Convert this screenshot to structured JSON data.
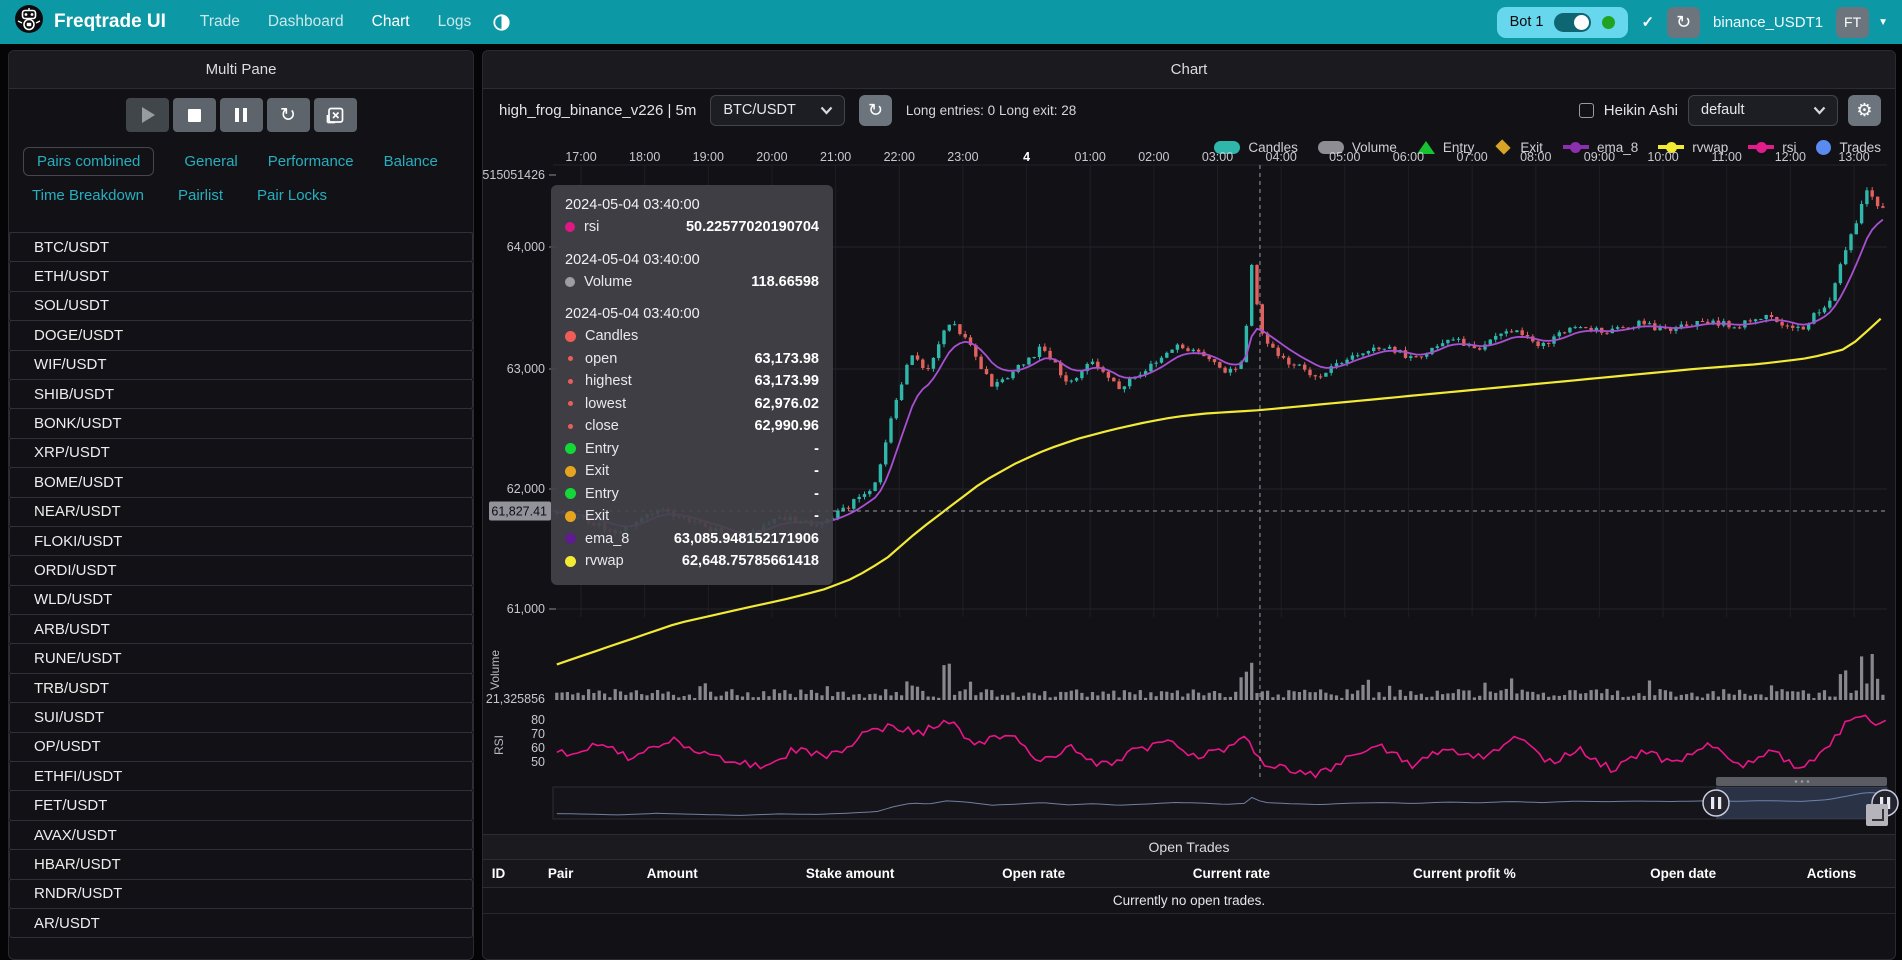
{
  "navbar": {
    "brand": "Freqtrade UI",
    "links": [
      {
        "label": "Trade",
        "active": false
      },
      {
        "label": "Dashboard",
        "active": false
      },
      {
        "label": "Chart",
        "active": true
      },
      {
        "label": "Logs",
        "active": false
      }
    ],
    "bot_name": "Bot 1",
    "bot_online": true,
    "check": "✓",
    "account": "binance_USDT1",
    "avatar": "FT"
  },
  "left_panel": {
    "title": "Multi Pane",
    "controls": [
      "play",
      "stop",
      "pause",
      "refresh",
      "clear-log"
    ],
    "tabs_row1": [
      "Pairs combined",
      "General",
      "Performance",
      "Balance"
    ],
    "tabs_row2": [
      "Time Breakdown",
      "Pairlist",
      "Pair Locks"
    ],
    "active_tab": "Pairs combined",
    "pairs": [
      "BTC/USDT",
      "ETH/USDT",
      "SOL/USDT",
      "DOGE/USDT",
      "WIF/USDT",
      "SHIB/USDT",
      "BONK/USDT",
      "XRP/USDT",
      "BOME/USDT",
      "NEAR/USDT",
      "FLOKI/USDT",
      "ORDI/USDT",
      "WLD/USDT",
      "ARB/USDT",
      "RUNE/USDT",
      "TRB/USDT",
      "SUI/USDT",
      "OP/USDT",
      "ETHFI/USDT",
      "FET/USDT",
      "AVAX/USDT",
      "HBAR/USDT",
      "RNDR/USDT",
      "AR/USDT"
    ]
  },
  "chart_panel": {
    "title": "Chart",
    "strategy": "high_frog_binance_v226 | 5m",
    "pair": "BTC/USDT",
    "stats": "Long entries: 0  Long exit: 28",
    "heikin_ashi": "Heikin Ashi",
    "plot_config": "default",
    "legend": [
      {
        "label": "Candles",
        "shape": "pill",
        "color": "#2fb7ab"
      },
      {
        "label": "Volume",
        "shape": "pill",
        "color": "#8d8d93"
      },
      {
        "label": "Entry",
        "shape": "triangle",
        "color": "#17c331"
      },
      {
        "label": "Exit",
        "shape": "diamond",
        "color": "#d9a425"
      },
      {
        "label": "ema_8",
        "shape": "linedot",
        "color": "#8b2fae"
      },
      {
        "label": "rvwap",
        "shape": "linedot",
        "color": "#f2e933"
      },
      {
        "label": "rsi",
        "shape": "linedot",
        "color": "#e31c8c"
      },
      {
        "label": "Trades",
        "shape": "circle",
        "color": "#5a8bf0"
      }
    ]
  },
  "tooltip": {
    "sections": [
      {
        "date": "2024-05-04 03:40:00",
        "rows": [
          {
            "dot": "#e01884",
            "size": "md",
            "label": "rsi",
            "value": "50.22577020190704"
          }
        ]
      },
      {
        "date": "2024-05-04 03:40:00",
        "rows": [
          {
            "dot": "#9e9ea2",
            "size": "md",
            "label": "Volume",
            "value": "118.66598"
          }
        ]
      },
      {
        "date": "2024-05-04 03:40:00",
        "rows": [
          {
            "dot": "#ee5d57",
            "size": "lg",
            "label": "Candles",
            "value": ""
          },
          {
            "dot": "#ee5d57",
            "size": "sm",
            "label": "open",
            "value": "63,173.98"
          },
          {
            "dot": "#ee5d57",
            "size": "sm",
            "label": "highest",
            "value": "63,173.99"
          },
          {
            "dot": "#ee5d57",
            "size": "sm",
            "label": "lowest",
            "value": "62,976.02"
          },
          {
            "dot": "#ee5d57",
            "size": "sm",
            "label": "close",
            "value": "62,990.96"
          },
          {
            "dot": "#13d838",
            "size": "lg",
            "label": "Entry",
            "value": "-"
          },
          {
            "dot": "#e7a51f",
            "size": "lg",
            "label": "Exit",
            "value": "-"
          },
          {
            "dot": "#13d838",
            "size": "lg",
            "label": "Entry",
            "value": "-"
          },
          {
            "dot": "#e7a51f",
            "size": "lg",
            "label": "Exit",
            "value": "-"
          },
          {
            "dot": "#5e1c8e",
            "size": "lg",
            "label": "ema_8",
            "value": "63,085.948152171906"
          },
          {
            "dot": "#f3ea33",
            "size": "lg",
            "label": "rvwap",
            "value": "62,648.75785661418"
          }
        ]
      }
    ]
  },
  "chart_data": {
    "type": "candlestick",
    "timeframe": "5m",
    "x_labels": [
      "17:00",
      "18:00",
      "19:00",
      "20:00",
      "21:00",
      "22:00",
      "23:00",
      "4",
      "01:00",
      "02:00",
      "03:00",
      "04:00",
      "05:00",
      "06:00",
      "07:00",
      "08:00",
      "09:00",
      "10:00",
      "11:00",
      "12:00",
      "13:00"
    ],
    "day_label": "4",
    "y_ticks": [
      {
        "label": "515051426",
        "y": 28
      },
      {
        "label": "64,000",
        "y": 100
      },
      {
        "label": "63,000",
        "y": 222
      },
      {
        "label": "62,000",
        "y": 342
      },
      {
        "label": "61,000",
        "y": 462
      }
    ],
    "crosshair_price_label": "61,827.41",
    "crosshair_time_u": 10.667,
    "volume_tick": "21,325856",
    "volume_axis_title": "Volume",
    "rsi_axis_title": "RSI",
    "rsi_ticks": [
      "80",
      "70",
      "60",
      "50"
    ],
    "seed": 11,
    "colors": {
      "up": "#2fb7ab",
      "down": "#e0615e",
      "ema": "#a94fd2",
      "rvwap": "#f3ea35",
      "rsi": "#ec1489",
      "volume": "#87878d"
    },
    "price_anchors": [
      [
        -0.5,
        61820
      ],
      [
        0,
        61750
      ],
      [
        0.6,
        61640
      ],
      [
        1.2,
        61840
      ],
      [
        1.9,
        61690
      ],
      [
        2.5,
        61580
      ],
      [
        3.1,
        61760
      ],
      [
        3.7,
        61700
      ],
      [
        4.2,
        61850
      ],
      [
        4.65,
        62050
      ],
      [
        4.95,
        62750
      ],
      [
        5.2,
        63120
      ],
      [
        5.45,
        62980
      ],
      [
        5.75,
        63400
      ],
      [
        6.05,
        63250
      ],
      [
        6.45,
        62850
      ],
      [
        6.85,
        62990
      ],
      [
        7.25,
        63170
      ],
      [
        7.65,
        62880
      ],
      [
        8.05,
        63050
      ],
      [
        8.45,
        62840
      ],
      [
        8.95,
        63020
      ],
      [
        9.35,
        63190
      ],
      [
        9.75,
        63110
      ],
      [
        10.15,
        62950
      ],
      [
        10.42,
        63080
      ],
      [
        10.52,
        63880
      ],
      [
        10.72,
        63200
      ],
      [
        11.1,
        63050
      ],
      [
        11.6,
        62930
      ],
      [
        12.1,
        63110
      ],
      [
        12.6,
        63180
      ],
      [
        13.1,
        63070
      ],
      [
        13.6,
        63250
      ],
      [
        14.1,
        63150
      ],
      [
        14.6,
        63310
      ],
      [
        15.1,
        63180
      ],
      [
        15.6,
        63350
      ],
      [
        16.1,
        63290
      ],
      [
        16.6,
        63370
      ],
      [
        17.1,
        63310
      ],
      [
        17.65,
        63390
      ],
      [
        18.15,
        63340
      ],
      [
        18.65,
        63430
      ],
      [
        19.15,
        63310
      ],
      [
        19.6,
        63550
      ],
      [
        19.95,
        64080
      ],
      [
        20.2,
        64450
      ],
      [
        20.4,
        64350
      ]
    ],
    "rvwap_anchors": [
      [
        -0.5,
        60520
      ],
      [
        0.5,
        60700
      ],
      [
        1.5,
        60880
      ],
      [
        2.5,
        61000
      ],
      [
        3.2,
        61080
      ],
      [
        3.8,
        61160
      ],
      [
        4.3,
        61260
      ],
      [
        4.8,
        61420
      ],
      [
        5.3,
        61650
      ],
      [
        5.8,
        61850
      ],
      [
        6.3,
        62050
      ],
      [
        6.8,
        62200
      ],
      [
        7.3,
        62320
      ],
      [
        7.8,
        62410
      ],
      [
        8.3,
        62480
      ],
      [
        8.8,
        62540
      ],
      [
        9.3,
        62590
      ],
      [
        9.8,
        62620
      ],
      [
        10.67,
        62649
      ],
      [
        11.5,
        62690
      ],
      [
        12.5,
        62740
      ],
      [
        13.5,
        62790
      ],
      [
        14.5,
        62840
      ],
      [
        15.5,
        62890
      ],
      [
        16.5,
        62940
      ],
      [
        17.5,
        62990
      ],
      [
        18.5,
        63030
      ],
      [
        19.3,
        63080
      ],
      [
        19.9,
        63160
      ],
      [
        20.2,
        63300
      ],
      [
        20.45,
        63420
      ]
    ],
    "rsi_anchors": [
      [
        -0.4,
        55
      ],
      [
        0.3,
        63
      ],
      [
        0.8,
        52
      ],
      [
        1.4,
        66
      ],
      [
        1.9,
        57
      ],
      [
        2.4,
        50
      ],
      [
        2.9,
        46
      ],
      [
        3.4,
        60
      ],
      [
        3.9,
        54
      ],
      [
        4.4,
        68
      ],
      [
        4.9,
        77
      ],
      [
        5.3,
        70
      ],
      [
        5.75,
        80
      ],
      [
        6.2,
        62
      ],
      [
        6.7,
        70
      ],
      [
        7.2,
        52
      ],
      [
        7.7,
        60
      ],
      [
        8.2,
        47
      ],
      [
        8.7,
        58
      ],
      [
        9.2,
        64
      ],
      [
        9.7,
        54
      ],
      [
        10.2,
        60
      ],
      [
        10.45,
        72
      ],
      [
        10.67,
        50
      ],
      [
        11.1,
        44
      ],
      [
        11.6,
        41
      ],
      [
        12.1,
        54
      ],
      [
        12.6,
        60
      ],
      [
        13.1,
        47
      ],
      [
        13.6,
        61
      ],
      [
        14.1,
        53
      ],
      [
        14.7,
        67
      ],
      [
        15.2,
        49
      ],
      [
        15.7,
        59
      ],
      [
        16.2,
        44
      ],
      [
        16.7,
        57
      ],
      [
        17.2,
        49
      ],
      [
        17.7,
        64
      ],
      [
        18.2,
        46
      ],
      [
        18.7,
        59
      ],
      [
        19.2,
        44
      ],
      [
        19.7,
        68
      ],
      [
        20.0,
        84
      ],
      [
        20.3,
        78
      ],
      [
        20.5,
        80
      ]
    ],
    "volume_spikes": [
      [
        5.2,
        2.6
      ],
      [
        5.75,
        3.1
      ],
      [
        6.1,
        2.2
      ],
      [
        10.45,
        3.6
      ],
      [
        12.3,
        2.0
      ],
      [
        14.6,
        2.3
      ],
      [
        19.85,
        3.3
      ],
      [
        20.05,
        3.8
      ],
      [
        20.2,
        3.4
      ],
      [
        20.35,
        2.8
      ]
    ],
    "nav_window": [
      0.872,
      1.0
    ]
  },
  "open_trades": {
    "title": "Open Trades",
    "columns": [
      "ID",
      "Pair",
      "Amount",
      "Stake amount",
      "Open rate",
      "Current rate",
      "Current profit %",
      "Open date",
      "Actions"
    ],
    "empty": "Currently no open trades."
  }
}
